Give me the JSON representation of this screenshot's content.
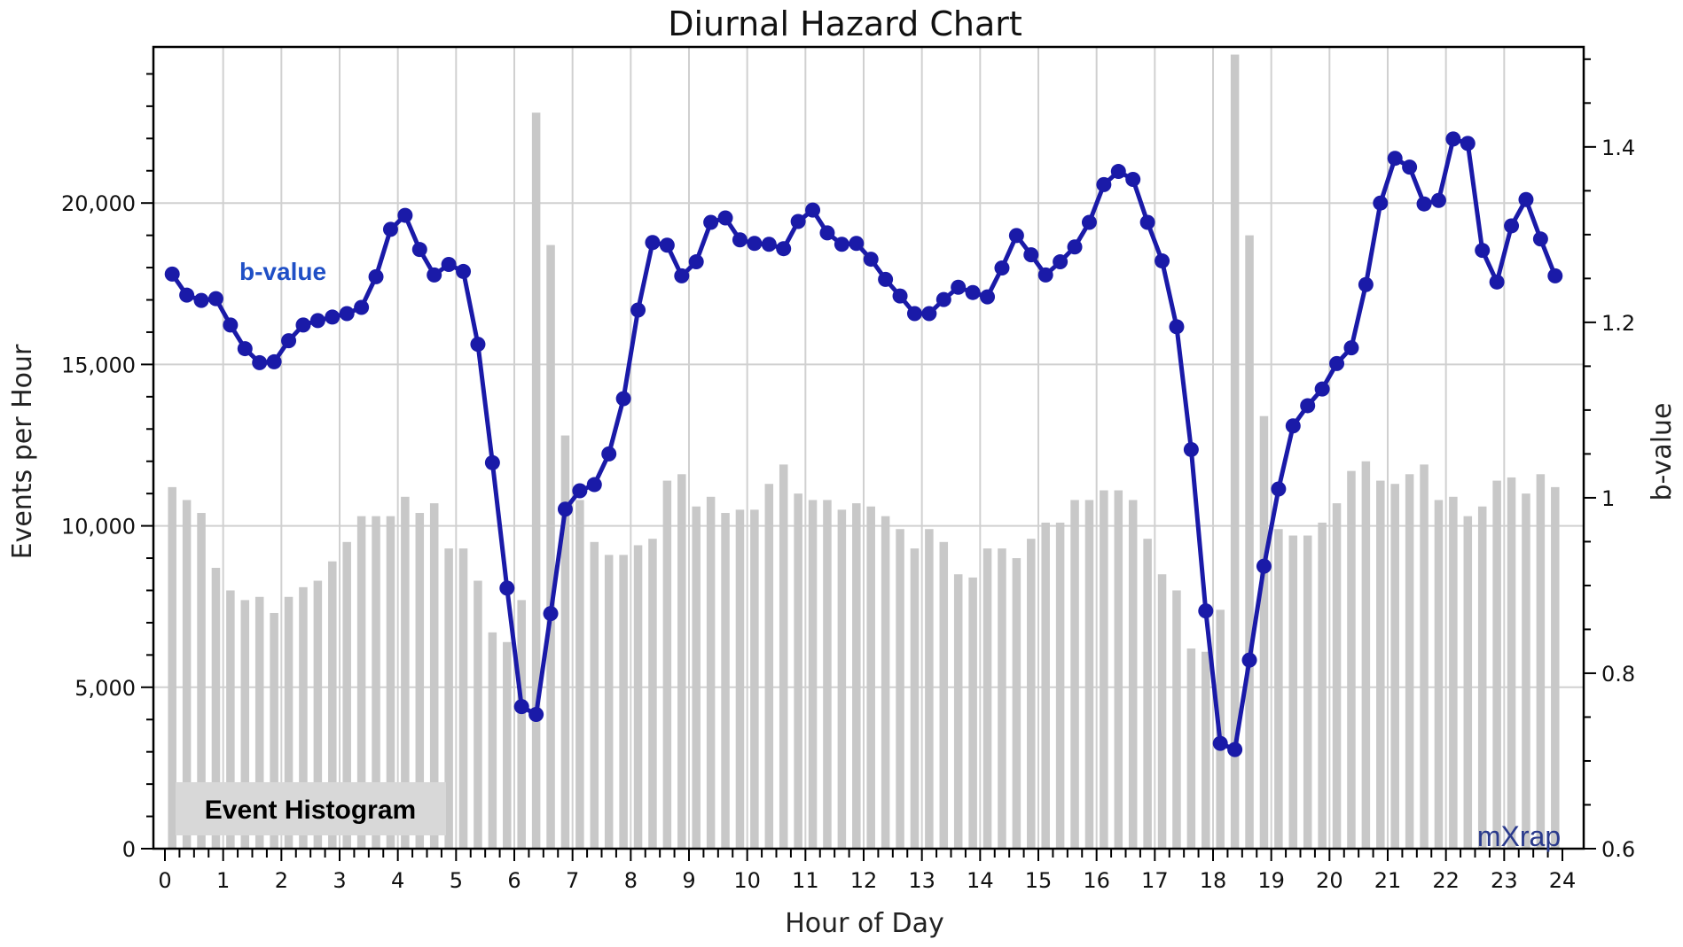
{
  "chart_data": {
    "type": "bar+line",
    "title": "Diurnal Hazard Chart",
    "xlabel": "Hour of Day",
    "ylabel": "Events per Hour",
    "y2label": "b-value",
    "xlim": [
      0,
      24
    ],
    "ylim": [
      0,
      25000
    ],
    "y2lim": [
      0.6,
      1.52
    ],
    "x_ticks": [
      0,
      1,
      2,
      3,
      4,
      5,
      6,
      7,
      8,
      9,
      10,
      11,
      12,
      13,
      14,
      15,
      16,
      17,
      18,
      19,
      20,
      21,
      22,
      23,
      24
    ],
    "x_tick_labels": [
      "0",
      "1",
      "2",
      "3",
      "4",
      "5",
      "6",
      "7",
      "8",
      "9",
      "10",
      "11",
      "12",
      "13",
      "14",
      "15",
      "16",
      "17",
      "18",
      "19",
      "20",
      "21",
      "22",
      "23",
      "24"
    ],
    "y_ticks": [
      0,
      5000,
      10000,
      15000,
      20000
    ],
    "y_tick_labels": [
      "0",
      "5,000",
      "10,000",
      "15,000",
      "20,000"
    ],
    "y2_ticks": [
      0.6,
      0.8,
      1.0,
      1.2,
      1.4
    ],
    "y2_tick_labels": [
      "0.6",
      "0.8",
      "1",
      "1.2",
      "1.4"
    ],
    "grid": true,
    "bin_width_hours": 0.25,
    "series": [
      {
        "name": "Event Histogram",
        "type": "bar",
        "axis": "left",
        "color": "#c8c8c8",
        "values": [
          11200,
          10800,
          10400,
          8700,
          8000,
          7700,
          7800,
          7300,
          7800,
          8100,
          8300,
          8900,
          9500,
          10300,
          10300,
          10300,
          10900,
          10400,
          10700,
          9300,
          9300,
          8300,
          6700,
          6400,
          7700,
          22800,
          18700,
          12800,
          10800,
          9500,
          9100,
          9100,
          9400,
          9600,
          11400,
          11600,
          10600,
          10900,
          10400,
          10500,
          10500,
          11300,
          11900,
          11000,
          10800,
          10800,
          10500,
          10700,
          10600,
          10300,
          9900,
          9300,
          9900,
          9500,
          8500,
          8400,
          9300,
          9300,
          9000,
          9600,
          10100,
          10100,
          10800,
          10800,
          11100,
          11100,
          10800,
          9600,
          8500,
          8000,
          6200,
          6100,
          7400,
          24600,
          19000,
          13400,
          9900,
          9700,
          9700,
          10100,
          10700,
          11700,
          12000,
          11400,
          11300,
          11600,
          11900,
          10800,
          10900,
          10300,
          10600,
          11400,
          11500,
          11000,
          11600,
          11200
        ]
      },
      {
        "name": "b-value",
        "type": "line",
        "axis": "right",
        "color": "#1a1aa8",
        "values": [
          1.255,
          1.231,
          1.225,
          1.227,
          1.197,
          1.17,
          1.154,
          1.155,
          1.179,
          1.197,
          1.202,
          1.206,
          1.21,
          1.217,
          1.252,
          1.306,
          1.322,
          1.283,
          1.254,
          1.266,
          1.258,
          1.175,
          1.04,
          0.897,
          0.762,
          0.753,
          0.868,
          0.987,
          1.008,
          1.015,
          1.05,
          1.113,
          1.214,
          1.291,
          1.288,
          1.253,
          1.269,
          1.314,
          1.319,
          1.294,
          1.29,
          1.289,
          1.284,
          1.315,
          1.328,
          1.302,
          1.289,
          1.29,
          1.272,
          1.249,
          1.23,
          1.21,
          1.21,
          1.226,
          1.24,
          1.234,
          1.229,
          1.262,
          1.299,
          1.277,
          1.254,
          1.269,
          1.286,
          1.314,
          1.357,
          1.372,
          1.363,
          1.314,
          1.27,
          1.195,
          1.055,
          0.871,
          0.72,
          0.713,
          0.815,
          0.922,
          1.01,
          1.082,
          1.105,
          1.124,
          1.153,
          1.171,
          1.243,
          1.336,
          1.387,
          1.377,
          1.335,
          1.339,
          1.409,
          1.404,
          1.282,
          1.246,
          1.31,
          1.34,
          1.295,
          1.253
        ]
      }
    ]
  },
  "annotations": {
    "b_value_label": "b-value",
    "histogram_label": "Event Histogram",
    "logo": "mXrap"
  },
  "colors": {
    "bars": "#c8c8c8",
    "line": "#1a1aa8",
    "b_value_label": "#1f4fc6",
    "grid": "#d0d0d0",
    "histogram_label_bg": "#d8d8d8"
  }
}
